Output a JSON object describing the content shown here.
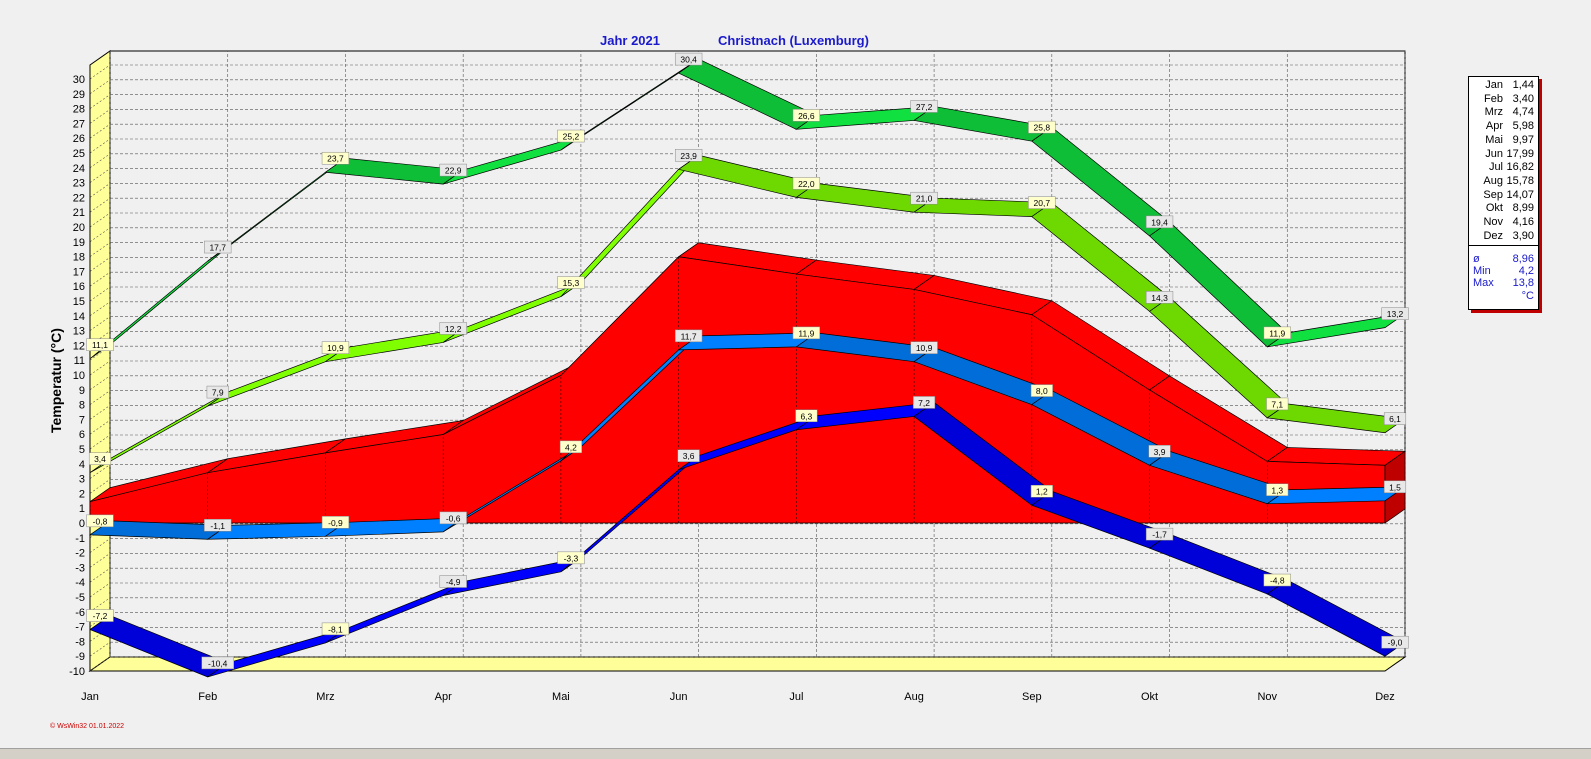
{
  "chart_data": {
    "type": "area",
    "title": "Jahr  2021",
    "subtitle": "Christnach (Luxemburg)",
    "xlabel": "",
    "ylabel": "Temperatur  (°C)",
    "ylim": [
      -10,
      30
    ],
    "categories": [
      "Jan",
      "Feb",
      "Mrz",
      "Apr",
      "Mai",
      "Jun",
      "Jul",
      "Aug",
      "Sep",
      "Okt",
      "Nov",
      "Dez"
    ],
    "grid": true,
    "legend_placement": "right",
    "series": [
      {
        "values": [
          11.1,
          17.7,
          23.7,
          22.9,
          25.2,
          30.4,
          26.6,
          27.2,
          25.8,
          19.4,
          11.9,
          13.2
        ],
        "labels": [
          "11,1",
          "17,7",
          "23,7",
          "22,9",
          "25,2",
          "30,4",
          "26,6",
          "27,2",
          "25,8",
          "19,4",
          "11,9",
          "13,2"
        ],
        "color": "#10e040"
      },
      {
        "values": [
          3.4,
          7.9,
          10.9,
          12.2,
          15.3,
          23.9,
          22.0,
          21.0,
          20.7,
          14.3,
          7.1,
          6.1
        ],
        "labels": [
          "3,4",
          "7,9",
          "10,9",
          "12,2",
          "15,3",
          "23,9",
          "22,0",
          "21,0",
          "20,7",
          "14,3",
          "7,1",
          "6,1"
        ],
        "color": "#80ff00"
      },
      {
        "values": [
          1.44,
          3.4,
          4.74,
          5.98,
          9.97,
          17.99,
          16.82,
          15.78,
          14.07,
          8.99,
          4.16,
          3.9
        ],
        "labels": [],
        "color": "#ff0000"
      },
      {
        "values": [
          -0.8,
          -1.1,
          -0.9,
          -0.6,
          4.2,
          11.7,
          11.9,
          10.9,
          8.0,
          3.9,
          1.3,
          1.5
        ],
        "labels": [
          "-0,8",
          "-1,1",
          "-0,9",
          "-0,6",
          "4,2",
          "11,7",
          "11,9",
          "10,9",
          "8,0",
          "3,9",
          "1,3",
          "1,5"
        ],
        "color": "#0080ff"
      },
      {
        "values": [
          -7.2,
          -10.4,
          -8.1,
          -4.9,
          -3.3,
          3.6,
          6.3,
          7.2,
          1.2,
          -1.7,
          -4.8,
          -9.0
        ],
        "labels": [
          "-7,2",
          "-10,4",
          "-8,1",
          "-4,9",
          "-3,3",
          "3,6",
          "6,3",
          "7,2",
          "1,2",
          "-1,7",
          "-4,8",
          "-9,0"
        ],
        "color": "#0000ff"
      }
    ]
  },
  "legend": {
    "months": [
      {
        "m": "Jan",
        "v": "1,44"
      },
      {
        "m": "Feb",
        "v": "3,40"
      },
      {
        "m": "Mrz",
        "v": "4,74"
      },
      {
        "m": "Apr",
        "v": "5,98"
      },
      {
        "m": "Mai",
        "v": "9,97"
      },
      {
        "m": "Jun",
        "v": "17,99"
      },
      {
        "m": "Jul",
        "v": "16,82"
      },
      {
        "m": "Aug",
        "v": "15,78"
      },
      {
        "m": "Sep",
        "v": "14,07"
      },
      {
        "m": "Okt",
        "v": "8,99"
      },
      {
        "m": "Nov",
        "v": "4,16"
      },
      {
        "m": "Dez",
        "v": "3,90"
      }
    ],
    "stats": [
      {
        "m": "ø",
        "v": "8,96"
      },
      {
        "m": "Min",
        "v": "4,2"
      },
      {
        "m": "Max",
        "v": "13,8"
      }
    ],
    "unit": "°C"
  },
  "footer": "© WsWin32  01.01.2022"
}
